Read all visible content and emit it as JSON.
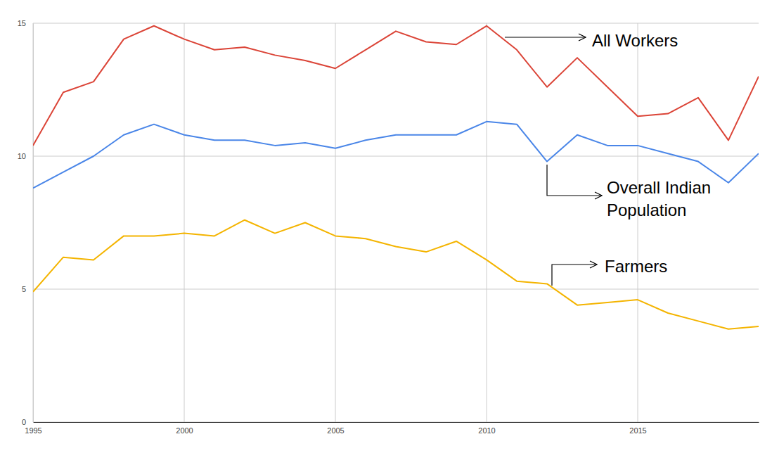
{
  "chart_data": {
    "type": "line",
    "x": [
      1995,
      1996,
      1997,
      1998,
      1999,
      2000,
      2001,
      2002,
      2003,
      2004,
      2005,
      2006,
      2007,
      2008,
      2009,
      2010,
      2011,
      2012,
      2013,
      2014,
      2015,
      2016,
      2017,
      2018,
      2019
    ],
    "series": [
      {
        "name": "All Workers",
        "color": "#db4437",
        "values": [
          10.4,
          12.4,
          12.8,
          14.4,
          14.9,
          14.4,
          14.0,
          14.1,
          13.8,
          13.6,
          13.3,
          14.0,
          14.7,
          14.3,
          14.2,
          14.9,
          14.0,
          12.6,
          13.7,
          12.6,
          11.5,
          11.6,
          12.2,
          10.6,
          13.0
        ]
      },
      {
        "name": "Overall Indian Population",
        "color": "#4a86e8",
        "values": [
          8.8,
          9.4,
          10.0,
          10.8,
          11.2,
          10.8,
          10.6,
          10.6,
          10.4,
          10.5,
          10.3,
          10.6,
          10.8,
          10.8,
          10.8,
          11.3,
          11.2,
          9.8,
          10.8,
          10.4,
          10.4,
          10.1,
          9.8,
          9.0,
          10.1
        ]
      },
      {
        "name": "Farmers",
        "color": "#f4b400",
        "values": [
          4.9,
          6.2,
          6.1,
          7.0,
          7.0,
          7.1,
          7.0,
          7.6,
          7.1,
          7.5,
          7.0,
          6.9,
          6.6,
          6.4,
          6.8,
          6.1,
          5.3,
          5.2,
          4.4,
          4.5,
          4.6,
          4.1,
          3.8,
          3.5,
          3.6
        ]
      }
    ],
    "xlim": [
      1995,
      2019
    ],
    "xticks": [
      1995,
      2000,
      2005,
      2010,
      2015
    ],
    "ylim": [
      0,
      15
    ],
    "yticks": [
      0,
      5,
      10,
      15
    ],
    "grid": true
  }
}
